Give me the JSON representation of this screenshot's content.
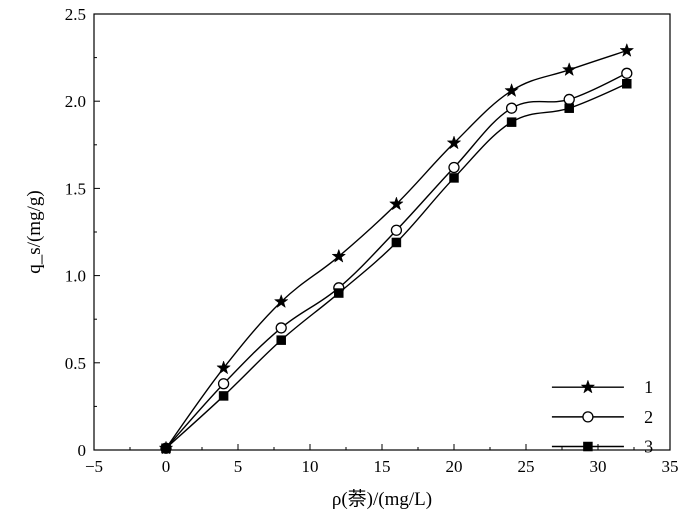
{
  "chart_data": {
    "type": "line",
    "xlabel": "ρ(萘)/(mg/L)",
    "ylabel": "q_s/(mg/g)",
    "xlim": [
      -5,
      35
    ],
    "ylim": [
      0,
      2.5
    ],
    "xticks": [
      -5,
      0,
      5,
      10,
      15,
      20,
      25,
      30,
      35
    ],
    "yticks": [
      0,
      0.5,
      1.0,
      1.5,
      2.0,
      2.5
    ],
    "xtick_labels": [
      "−5",
      "0",
      "5",
      "10",
      "15",
      "20",
      "25",
      "30",
      "35"
    ],
    "ytick_labels": [
      "0",
      "0.5",
      "1.0",
      "1.5",
      "2.0",
      "2.5"
    ],
    "grid": false,
    "legend_position": "bottom-right",
    "x": [
      0,
      4,
      8,
      12,
      16,
      20,
      24,
      28,
      32
    ],
    "series": [
      {
        "name": "1",
        "marker": "star",
        "values": [
          0.01,
          0.47,
          0.85,
          1.11,
          1.41,
          1.76,
          2.06,
          2.18,
          2.29
        ]
      },
      {
        "name": "2",
        "marker": "open-circle",
        "values": [
          0.01,
          0.38,
          0.7,
          0.93,
          1.26,
          1.62,
          1.96,
          2.01,
          2.16
        ]
      },
      {
        "name": "3",
        "marker": "filled-square",
        "values": [
          0.01,
          0.31,
          0.63,
          0.9,
          1.19,
          1.56,
          1.88,
          1.96,
          2.1
        ]
      }
    ],
    "colors": {
      "line": "#000000",
      "background": "#ffffff"
    }
  }
}
